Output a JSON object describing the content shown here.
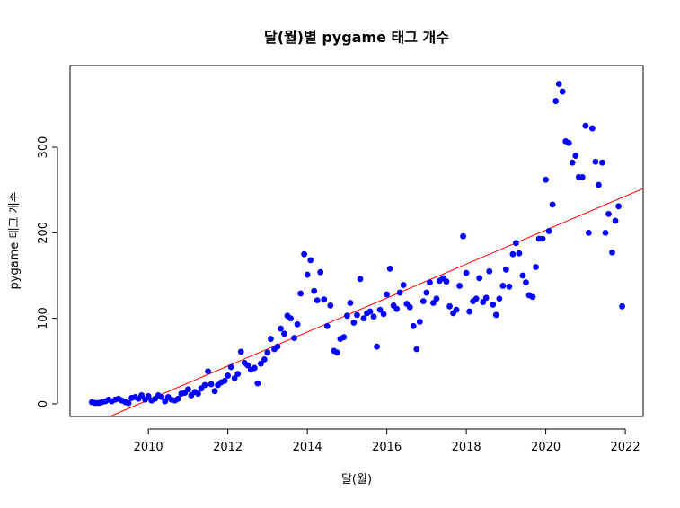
{
  "chart_data": {
    "type": "scatter",
    "title": "달(월)별 pygame 태그 개수",
    "x_label": "달(월)",
    "y_label": "pygame 태그 개수",
    "xlim": [
      2008.03,
      2022.45
    ],
    "ylim": [
      -14.7,
      395.5
    ],
    "xticks": [
      2010,
      2012,
      2014,
      2016,
      2018,
      2020,
      2022
    ],
    "yticks": [
      0,
      100,
      200,
      300
    ],
    "series": [
      {
        "color": "#0000ff",
        "x": [
          2008.58,
          2008.67,
          2008.75,
          2008.83,
          2008.92,
          2009,
          2009.08,
          2009.17,
          2009.25,
          2009.33,
          2009.42,
          2009.5,
          2009.58,
          2009.67,
          2009.75,
          2009.83,
          2009.92,
          2010,
          2010.08,
          2010.17,
          2010.25,
          2010.33,
          2010.42,
          2010.5,
          2010.58,
          2010.67,
          2010.75,
          2010.83,
          2010.92,
          2011,
          2011.08,
          2011.17,
          2011.25,
          2011.33,
          2011.42,
          2011.5,
          2011.58,
          2011.67,
          2011.75,
          2011.83,
          2011.92,
          2012,
          2012.08,
          2012.17,
          2012.25,
          2012.33,
          2012.42,
          2012.5,
          2012.58,
          2012.67,
          2012.75,
          2012.83,
          2012.92,
          2013,
          2013.08,
          2013.17,
          2013.25,
          2013.33,
          2013.42,
          2013.5,
          2013.58,
          2013.67,
          2013.75,
          2013.83,
          2013.92,
          2014,
          2014.08,
          2014.17,
          2014.25,
          2014.33,
          2014.42,
          2014.5,
          2014.58,
          2014.67,
          2014.75,
          2014.83,
          2014.92,
          2015,
          2015.08,
          2015.17,
          2015.25,
          2015.33,
          2015.42,
          2015.5,
          2015.58,
          2015.67,
          2015.75,
          2015.83,
          2015.92,
          2016,
          2016.08,
          2016.17,
          2016.25,
          2016.33,
          2016.42,
          2016.5,
          2016.58,
          2016.67,
          2016.75,
          2016.83,
          2016.92,
          2017,
          2017.08,
          2017.17,
          2017.25,
          2017.33,
          2017.42,
          2017.5,
          2017.58,
          2017.67,
          2017.75,
          2017.83,
          2017.92,
          2018,
          2018.08,
          2018.17,
          2018.25,
          2018.33,
          2018.42,
          2018.5,
          2018.58,
          2018.67,
          2018.75,
          2018.83,
          2018.92,
          2019,
          2019.08,
          2019.17,
          2019.25,
          2019.33,
          2019.42,
          2019.5,
          2019.58,
          2019.67,
          2019.75,
          2019.83,
          2019.92,
          2020,
          2020.08,
          2020.17,
          2020.25,
          2020.33,
          2020.42,
          2020.5,
          2020.58,
          2020.67,
          2020.75,
          2020.83,
          2020.92,
          2021,
          2021.08,
          2021.17,
          2021.25,
          2021.33,
          2021.42,
          2021.5,
          2021.58,
          2021.67,
          2021.75,
          2021.83,
          2021.92
        ],
        "values": [
          2,
          1,
          1,
          2,
          3,
          5,
          3,
          5,
          6,
          4,
          2,
          1,
          7,
          8,
          6,
          10,
          5,
          9,
          4,
          6,
          10,
          8,
          3,
          8,
          5,
          4,
          6,
          12,
          13,
          17,
          10,
          14,
          12,
          18,
          22,
          38,
          23,
          15,
          22,
          25,
          27,
          33,
          43,
          30,
          35,
          61,
          48,
          45,
          40,
          42,
          24,
          47,
          52,
          60,
          76,
          64,
          67,
          88,
          82,
          103,
          100,
          77,
          93,
          129,
          175,
          151,
          168,
          132,
          121,
          154,
          122,
          91,
          115,
          62,
          60,
          76,
          78,
          103,
          118,
          95,
          104,
          146,
          100,
          106,
          108,
          102,
          67,
          110,
          105,
          128,
          158,
          115,
          111,
          130,
          139,
          117,
          113,
          91,
          64,
          96,
          120,
          130,
          142,
          118,
          123,
          144,
          147,
          143,
          114,
          106,
          110,
          138,
          196,
          153,
          108,
          120,
          123,
          147,
          119,
          124,
          155,
          116,
          104,
          123,
          138,
          157,
          137,
          175,
          188,
          176,
          150,
          142,
          127,
          125,
          160,
          193,
          193,
          262,
          202,
          233,
          354,
          374,
          365,
          307,
          305,
          282,
          290,
          265,
          265,
          325,
          200,
          322,
          283,
          256,
          282,
          200,
          222,
          177,
          214,
          231,
          114
        ]
      }
    ],
    "trendline": {
      "color": "#ff0000",
      "x": [
        2010,
        2022
      ],
      "y": [
        4.6,
        242.8
      ]
    }
  }
}
